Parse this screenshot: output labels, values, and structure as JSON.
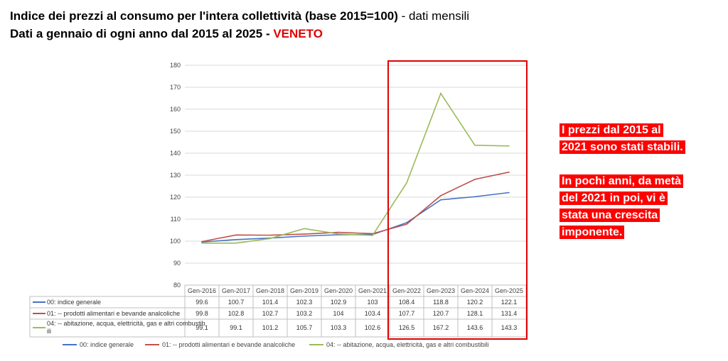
{
  "header": {
    "line1_bold": "Indice dei prezzi al consumo per l'intera collettività (base 2015=100)",
    "line1_rest": " - dati mensili",
    "line2_bold": "Dati a gennaio di ogni anno dal 2015 al 2025 - ",
    "line2_region": "VENETO"
  },
  "notes": {
    "note1_lines": [
      "I prezzi dal 2015 al",
      "2021 sono stati stabili."
    ],
    "note2_lines": [
      "In pochi anni, da metà",
      "del 2021 in poi, vi è",
      "stata una crescita",
      "imponente."
    ]
  },
  "colors": {
    "highlight_box": "#e00000",
    "note_background": "#ff0000"
  },
  "chart_data": {
    "type": "line",
    "categories": [
      "Gen-2016",
      "Gen-2017",
      "Gen-2018",
      "Gen-2019",
      "Gen-2020",
      "Gen-2021",
      "Gen-2022",
      "Gen-2023",
      "Gen-2024",
      "Gen-2025"
    ],
    "ylim": [
      80,
      180
    ],
    "yticks": [
      80,
      90,
      100,
      110,
      120,
      130,
      140,
      150,
      160,
      170,
      180
    ],
    "grid": true,
    "legend": "bottom",
    "highlight_range": [
      "Gen-2022",
      "Gen-2025"
    ],
    "series": [
      {
        "name": "00: indice generale",
        "color": "#4472c4",
        "values": [
          99.6,
          100.7,
          101.4,
          102.3,
          102.9,
          103,
          108.4,
          118.8,
          120.2,
          122.1
        ],
        "labels": [
          "99.6",
          "100.7",
          "101.4",
          "102.3",
          "102.9",
          "103",
          "108.4",
          "118.8",
          "120.2",
          "122.1"
        ]
      },
      {
        "name": "01: -- prodotti alimentari e bevande analcoliche",
        "color": "#c0504d",
        "values": [
          99.8,
          102.8,
          102.7,
          103.2,
          104,
          103.4,
          107.7,
          120.7,
          128.1,
          131.4
        ],
        "labels": [
          "99.8",
          "102.8",
          "102.7",
          "103.2",
          "104",
          "103.4",
          "107.7",
          "120.7",
          "128.1",
          "131.4"
        ]
      },
      {
        "name": "04: -- abitazione, acqua, elettricità, gas e altri combustibili",
        "color": "#9bbb59",
        "values": [
          99.1,
          99.1,
          101.2,
          105.7,
          103.3,
          102.6,
          126.5,
          167.2,
          143.6,
          143.3
        ],
        "labels": [
          "99.1",
          "99.1",
          "101.2",
          "105.7",
          "103.3",
          "102.6",
          "126.5",
          "167.2",
          "143.6",
          "143.3"
        ]
      }
    ]
  }
}
